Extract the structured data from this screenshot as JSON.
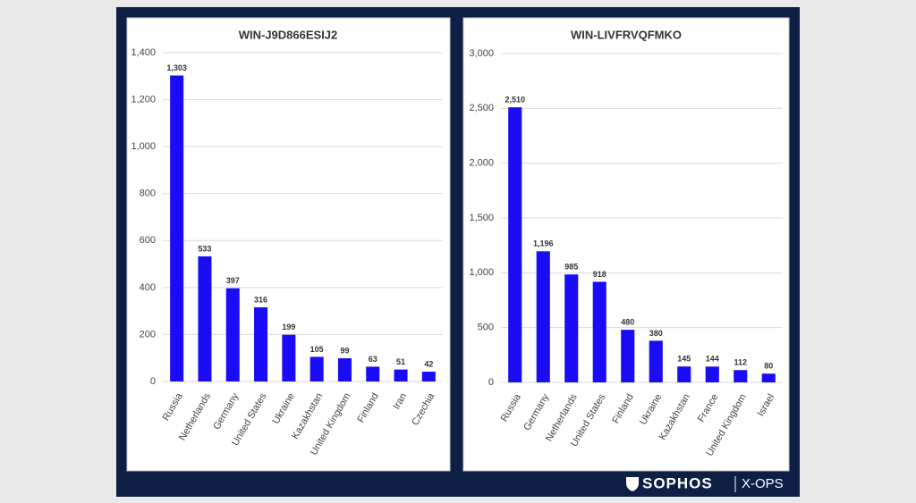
{
  "chart_data": [
    {
      "type": "bar",
      "title": "WIN-J9D866ESIJ2",
      "categories": [
        "Russia",
        "Netherlands",
        "Germany",
        "United States",
        "Ukraine",
        "Kazakhstan",
        "United Kingdom",
        "Finland",
        "Iran",
        "Czechia"
      ],
      "values": [
        1303,
        533,
        397,
        316,
        199,
        105,
        99,
        63,
        51,
        42
      ],
      "value_labels": [
        "1,303",
        "533",
        "397",
        "316",
        "199",
        "105",
        "99",
        "63",
        "51",
        "42"
      ],
      "color": "#1a0cf5",
      "ylim": [
        0,
        1400
      ],
      "yticks": [
        0,
        200,
        400,
        600,
        800,
        {
          "value": 1000,
          "label": "1,000"
        },
        {
          "value": 1200,
          "label": "1,200"
        },
        {
          "value": 1400,
          "label": "1,400"
        }
      ],
      "grid": true
    },
    {
      "type": "bar",
      "title": "WIN-LIVFRVQFMKO",
      "categories": [
        "Russia",
        "Germany",
        "Netherlands",
        "United States",
        "Finland",
        "Ukraine",
        "Kazakhstan",
        "France",
        "United Kingdom",
        "Israel"
      ],
      "values": [
        2510,
        1196,
        985,
        918,
        480,
        380,
        145,
        144,
        112,
        80
      ],
      "value_labels": [
        "2,510",
        "1,196",
        "985",
        "918",
        "480",
        "380",
        "145",
        "144",
        "112",
        "80"
      ],
      "color": "#1a0cf5",
      "ylim": [
        0,
        3000
      ],
      "yticks": [
        0,
        500,
        {
          "value": 1000,
          "label": "1,000"
        },
        {
          "value": 1500,
          "label": "1,500"
        },
        {
          "value": 2000,
          "label": "2,000"
        },
        {
          "value": 2500,
          "label": "2,500"
        },
        {
          "value": 3000,
          "label": "3,000"
        }
      ],
      "grid": true
    }
  ],
  "footer": {
    "brand": "SOPHOS",
    "product": "X-OPS"
  }
}
